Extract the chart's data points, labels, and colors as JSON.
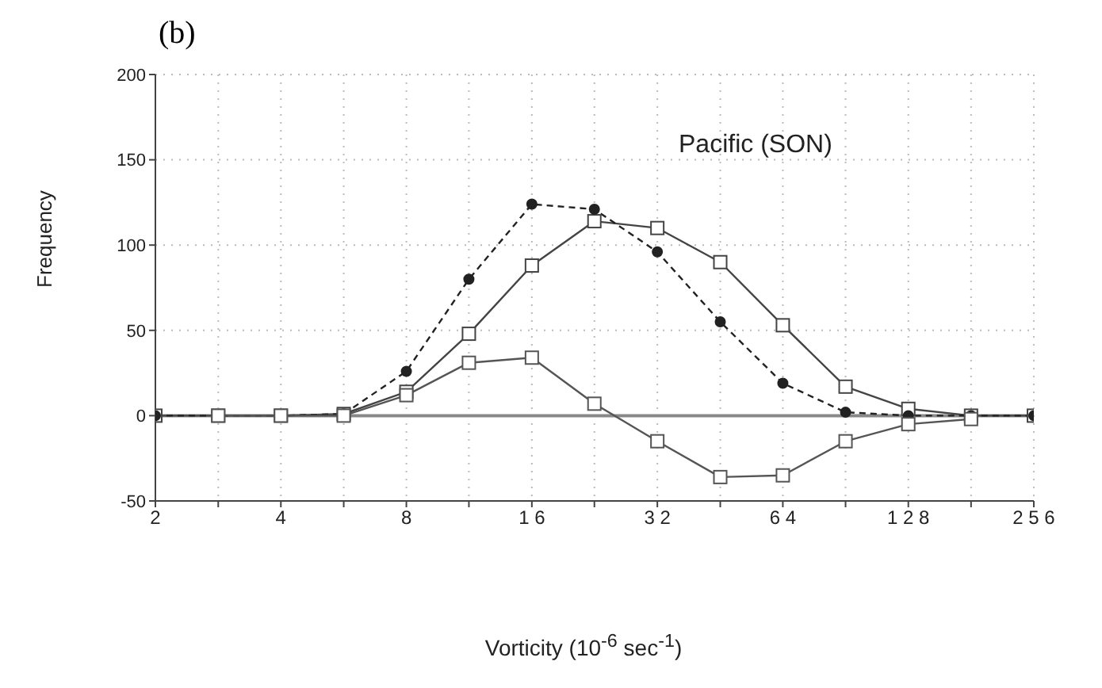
{
  "chart_data": {
    "type": "line",
    "title": "(b)",
    "annotations": [
      "Pacific (SON)"
    ],
    "xlabel": "Vorticity (10$^{-6}$ sec$^{-1}$)",
    "ylabel": "Frequency",
    "log": "x",
    "x": [
      2,
      2.83,
      4,
      5.66,
      8,
      11.3,
      16,
      22.6,
      32,
      45.3,
      64,
      90.5,
      128,
      181,
      256
    ],
    "series": [
      {
        "color": "#444444",
        "marker": "square",
        "line_style": "solid",
        "values": [
          0,
          0,
          0,
          1,
          14,
          48,
          88,
          114,
          110,
          90,
          53,
          17,
          4,
          0,
          0
        ]
      },
      {
        "color": "#222222",
        "marker": "circle",
        "line_style": "dashed",
        "values": [
          0,
          0,
          0,
          1,
          26,
          80,
          124,
          121,
          96,
          55,
          19,
          2,
          0,
          0,
          0
        ]
      },
      {
        "color": "#555555",
        "marker": "square",
        "line_style": "solid",
        "values": [
          null,
          0,
          0,
          0,
          12,
          31,
          34,
          7,
          -15,
          -36,
          -35,
          -15,
          -5,
          -2,
          null
        ]
      }
    ],
    "xlim": [
      2,
      256
    ],
    "xticks": [
      2,
      {
        "value": 2.83,
        "label": null
      },
      4,
      {
        "value": 5.66,
        "label": null
      },
      8,
      {
        "value": 11.3,
        "label": null
      },
      {
        "value": 16,
        "label": "1 6"
      },
      {
        "value": 22.6,
        "label": null
      },
      {
        "value": 32,
        "label": "3 2"
      },
      {
        "value": 45.3,
        "label": null
      },
      {
        "value": 64,
        "label": "6 4"
      },
      {
        "value": 90.5,
        "label": null
      },
      {
        "value": 128,
        "label": "1 2 8"
      },
      {
        "value": 181,
        "label": null
      },
      {
        "value": 256,
        "label": "2 5 6"
      }
    ],
    "ylim": [
      -50,
      200
    ],
    "yticks": [
      -50,
      0,
      50,
      100,
      150,
      200
    ],
    "grid": true,
    "ref_lines": [
      {
        "axis": "y",
        "value": 0,
        "color": "#888888"
      }
    ]
  }
}
